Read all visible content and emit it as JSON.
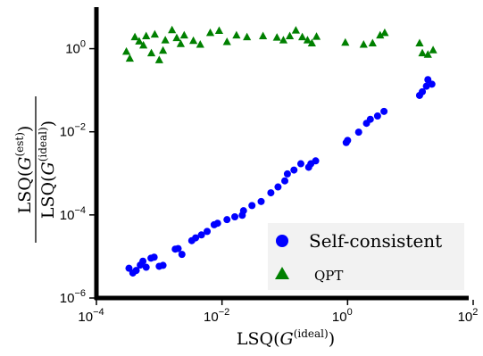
{
  "chart_data": {
    "type": "scatter",
    "title": "",
    "xlabel": "LSQ(G^(ideal))",
    "ylabel": "LSQ(G^(est)) / LSQ(G^(ideal))",
    "xscale": "log",
    "yscale": "log",
    "xlim": [
      0.0001,
      100
    ],
    "ylim": [
      1e-06,
      10
    ],
    "xticks": [
      {
        "base": "10",
        "exp": "−4",
        "value": 0.0001
      },
      {
        "base": "10",
        "exp": "−2",
        "value": 0.01
      },
      {
        "base": "10",
        "exp": "0",
        "value": 1
      },
      {
        "base": "10",
        "exp": "2",
        "value": 100
      }
    ],
    "yticks": [
      {
        "base": "10",
        "exp": "0",
        "value": 1
      },
      {
        "base": "10",
        "exp": "−2",
        "value": 0.01
      },
      {
        "base": "10",
        "exp": "−4",
        "value": 0.0001
      },
      {
        "base": "10",
        "exp": "−6",
        "value": 1e-06
      }
    ],
    "grid": false,
    "legend_position": "bottom-right",
    "series": [
      {
        "name": "Self-consistent",
        "marker": "circle",
        "color": "#0000ff",
        "points": [
          [
            0.00033,
            5.2e-06
          ],
          [
            0.00038,
            4e-06
          ],
          [
            0.00043,
            4.6e-06
          ],
          [
            0.0005,
            6.2e-06
          ],
          [
            0.00055,
            7.7e-06
          ],
          [
            0.00062,
            5.5e-06
          ],
          [
            0.00074,
            9.1e-06
          ],
          [
            0.00083,
            9.6e-06
          ],
          [
            0.001,
            5.8e-06
          ],
          [
            0.00115,
            6.1e-06
          ],
          [
            0.0018,
            1.5e-05
          ],
          [
            0.002,
            1.55e-05
          ],
          [
            0.0023,
            1.12e-05
          ],
          [
            0.0033,
            2.4e-05
          ],
          [
            0.0038,
            2.8e-05
          ],
          [
            0.0047,
            3.3e-05
          ],
          [
            0.0058,
            4e-05
          ],
          [
            0.0075,
            5.8e-05
          ],
          [
            0.0085,
            6.3e-05
          ],
          [
            0.012,
            7.7e-05
          ],
          [
            0.016,
            9e-05
          ],
          [
            0.021,
            9.8e-05
          ],
          [
            0.022,
            0.000126
          ],
          [
            0.03,
            0.000168
          ],
          [
            0.042,
            0.00021
          ],
          [
            0.06,
            0.00034
          ],
          [
            0.078,
            0.00047
          ],
          [
            0.1,
            0.00066
          ],
          [
            0.11,
            0.00097
          ],
          [
            0.14,
            0.0012
          ],
          [
            0.18,
            0.0017
          ],
          [
            0.24,
            0.0014
          ],
          [
            0.26,
            0.0017
          ],
          [
            0.31,
            0.002
          ],
          [
            0.95,
            0.0055
          ],
          [
            1.0,
            0.0062
          ],
          [
            1.5,
            0.0098
          ],
          [
            2.0,
            0.016
          ],
          [
            2.3,
            0.02
          ],
          [
            3.0,
            0.024
          ],
          [
            3.8,
            0.031
          ],
          [
            14.0,
            0.075
          ],
          [
            15.5,
            0.092
          ],
          [
            18.0,
            0.125
          ],
          [
            19.0,
            0.18
          ],
          [
            22.0,
            0.14
          ]
        ]
      },
      {
        "name": "QPT",
        "marker": "triangle",
        "color": "#008000",
        "points": [
          [
            0.0003,
            0.85
          ],
          [
            0.00034,
            0.58
          ],
          [
            0.00041,
            1.9
          ],
          [
            0.00048,
            1.5
          ],
          [
            0.00056,
            1.2
          ],
          [
            0.00062,
            2.0
          ],
          [
            0.00075,
            0.78
          ],
          [
            0.00085,
            2.2
          ],
          [
            0.001,
            0.53
          ],
          [
            0.00115,
            0.9
          ],
          [
            0.00125,
            1.6
          ],
          [
            0.0016,
            2.8
          ],
          [
            0.0019,
            1.8
          ],
          [
            0.0022,
            1.3
          ],
          [
            0.0025,
            2.1
          ],
          [
            0.0035,
            1.55
          ],
          [
            0.0045,
            1.25
          ],
          [
            0.0065,
            2.4
          ],
          [
            0.009,
            2.7
          ],
          [
            0.012,
            1.45
          ],
          [
            0.017,
            2.1
          ],
          [
            0.025,
            1.9
          ],
          [
            0.045,
            2.0
          ],
          [
            0.075,
            1.85
          ],
          [
            0.095,
            1.6
          ],
          [
            0.12,
            2.0
          ],
          [
            0.15,
            2.75
          ],
          [
            0.19,
            1.9
          ],
          [
            0.23,
            1.6
          ],
          [
            0.27,
            1.35
          ],
          [
            0.32,
            1.95
          ],
          [
            0.92,
            1.4
          ],
          [
            1.8,
            1.25
          ],
          [
            2.5,
            1.35
          ],
          [
            3.3,
            2.1
          ],
          [
            3.9,
            2.4
          ],
          [
            14.0,
            1.35
          ],
          [
            15.5,
            0.78
          ],
          [
            19.0,
            0.72
          ],
          [
            23.0,
            0.92
          ]
        ]
      }
    ]
  }
}
